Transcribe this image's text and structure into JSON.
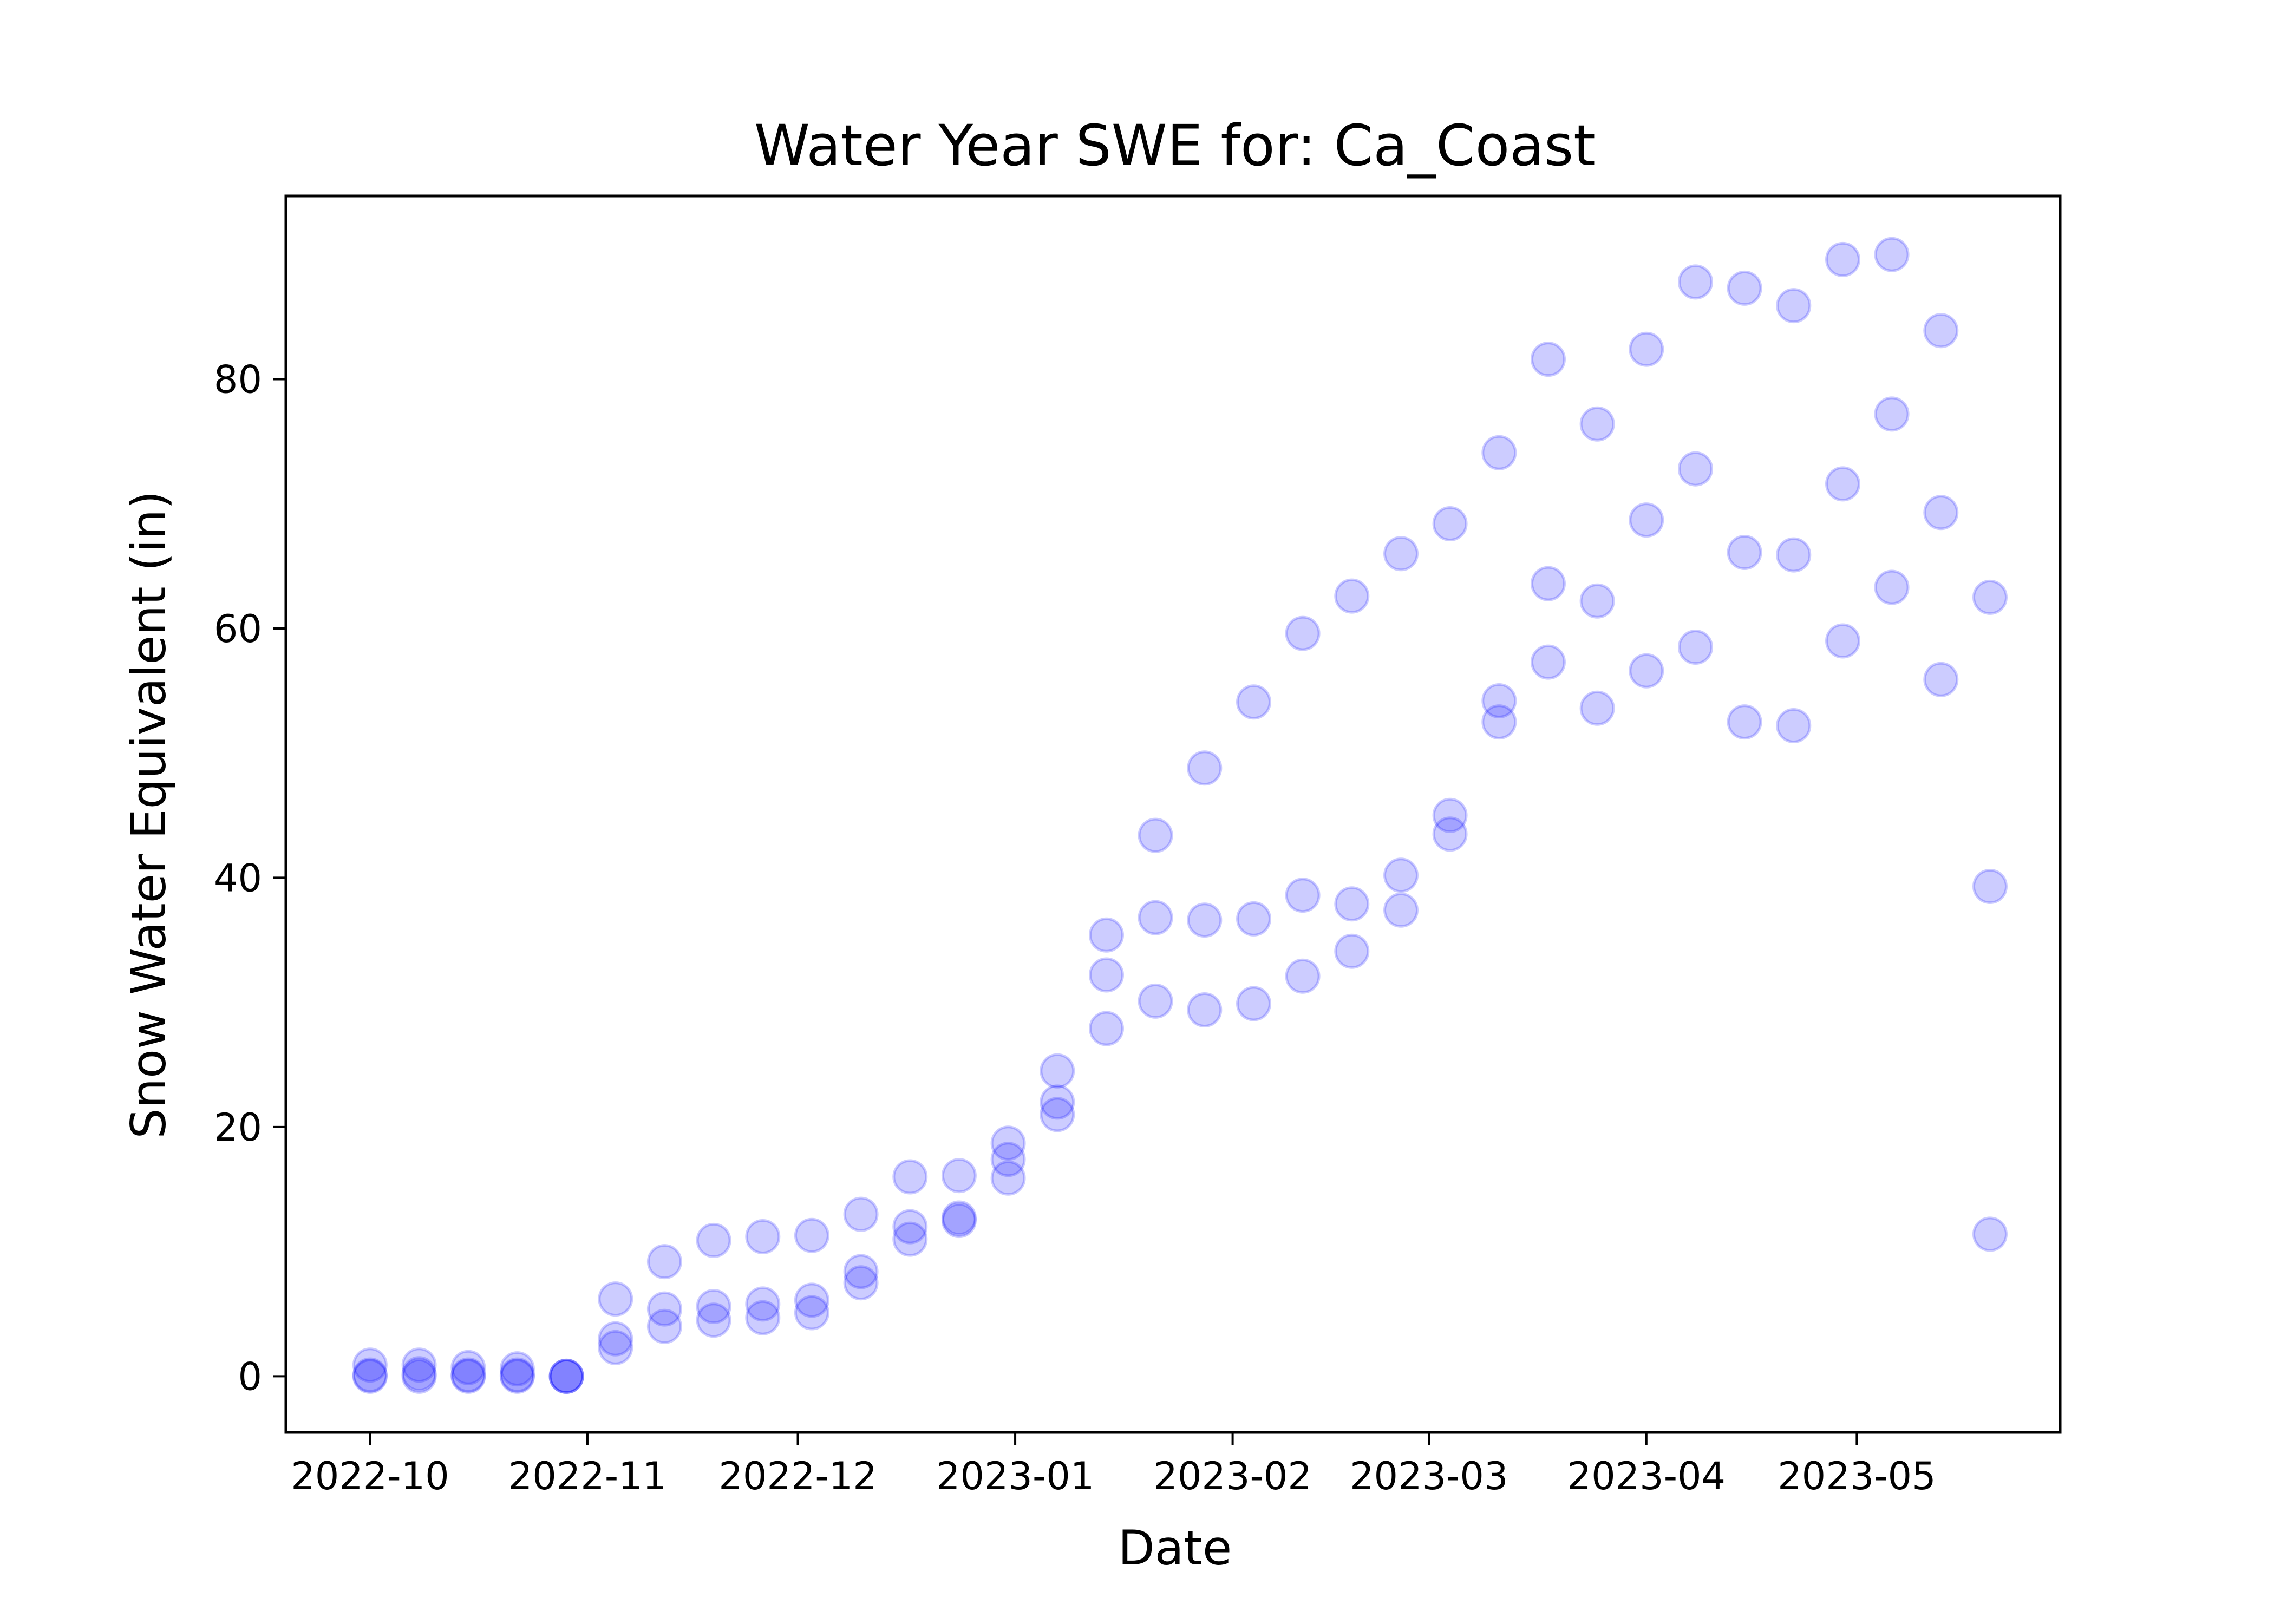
{
  "chart_data": {
    "type": "scatter",
    "title": "Water Year SWE for: Ca_Coast",
    "xlabel": "Date",
    "ylabel": "Snow Water Equivalent (in)",
    "x_axis_type": "date",
    "xlim": [
      "2022-09-19",
      "2023-05-30"
    ],
    "ylim": [
      -4.5,
      94.7
    ],
    "x_ticks": [
      "2022-10",
      "2022-11",
      "2022-12",
      "2023-01",
      "2023-02",
      "2023-03",
      "2023-04",
      "2023-05"
    ],
    "x_tick_dates": [
      "2022-10-01",
      "2022-11-01",
      "2022-12-01",
      "2023-01-01",
      "2023-02-01",
      "2023-03-01",
      "2023-04-01",
      "2023-05-01"
    ],
    "y_ticks": [
      0,
      20,
      40,
      60,
      80
    ],
    "grid": false,
    "legend": "none",
    "marker_color": "#0000ff",
    "marker_alpha": 0.2,
    "points": [
      {
        "x": "2022-10-01",
        "y": [
          0.0,
          0.1,
          0.9
        ]
      },
      {
        "x": "2022-10-08",
        "y": [
          0.0,
          0.2,
          0.9
        ]
      },
      {
        "x": "2022-10-15",
        "y": [
          0.0,
          0.1,
          0.7
        ]
      },
      {
        "x": "2022-10-22",
        "y": [
          0.0,
          0.1,
          0.6
        ]
      },
      {
        "x": "2022-10-29",
        "y": [
          0.0,
          0.0,
          0.0
        ]
      },
      {
        "x": "2022-11-05",
        "y": [
          2.3,
          3.0,
          6.2
        ]
      },
      {
        "x": "2022-11-12",
        "y": [
          4.0,
          5.4,
          9.2
        ]
      },
      {
        "x": "2022-11-19",
        "y": [
          4.5,
          5.6,
          10.9
        ]
      },
      {
        "x": "2022-11-26",
        "y": [
          4.7,
          5.8,
          11.2
        ]
      },
      {
        "x": "2022-12-03",
        "y": [
          5.1,
          6.1,
          11.3
        ]
      },
      {
        "x": "2022-12-10",
        "y": [
          7.5,
          8.4,
          13.0
        ]
      },
      {
        "x": "2022-12-17",
        "y": [
          11.0,
          12.0,
          16.0
        ]
      },
      {
        "x": "2022-12-24",
        "y": [
          12.5,
          12.7,
          16.1
        ]
      },
      {
        "x": "2022-12-31",
        "y": [
          15.9,
          17.4,
          18.7
        ]
      },
      {
        "x": "2023-01-07",
        "y": [
          21.0,
          22.0,
          24.5
        ]
      },
      {
        "x": "2023-01-14",
        "y": [
          27.9,
          32.2,
          35.4
        ]
      },
      {
        "x": "2023-01-21",
        "y": [
          30.1,
          36.8,
          43.4
        ]
      },
      {
        "x": "2023-01-28",
        "y": [
          29.4,
          36.6,
          48.8
        ]
      },
      {
        "x": "2023-02-04",
        "y": [
          29.9,
          36.7,
          54.1
        ]
      },
      {
        "x": "2023-02-11",
        "y": [
          32.1,
          38.6,
          59.6
        ]
      },
      {
        "x": "2023-02-18",
        "y": [
          34.1,
          37.9,
          62.6
        ]
      },
      {
        "x": "2023-02-25",
        "y": [
          37.4,
          40.2,
          66.0
        ]
      },
      {
        "x": "2023-03-04",
        "y": [
          43.5,
          45.0,
          68.4
        ]
      },
      {
        "x": "2023-03-11",
        "y": [
          52.5,
          54.2,
          74.1
        ]
      },
      {
        "x": "2023-03-18",
        "y": [
          57.3,
          63.6,
          81.6
        ]
      },
      {
        "x": "2023-03-25",
        "y": [
          53.6,
          62.2,
          76.4
        ]
      },
      {
        "x": "2023-04-01",
        "y": [
          56.6,
          68.7,
          82.4
        ]
      },
      {
        "x": "2023-04-08",
        "y": [
          58.5,
          72.8,
          87.8
        ]
      },
      {
        "x": "2023-04-15",
        "y": [
          52.5,
          66.1,
          87.3
        ]
      },
      {
        "x": "2023-04-22",
        "y": [
          52.2,
          65.9,
          85.9
        ]
      },
      {
        "x": "2023-04-29",
        "y": [
          59.0,
          71.6,
          89.6
        ]
      },
      {
        "x": "2023-05-06",
        "y": [
          63.3,
          77.2,
          90.0
        ]
      },
      {
        "x": "2023-05-13",
        "y": [
          55.9,
          69.3,
          83.9
        ]
      },
      {
        "x": "2023-05-20",
        "y": [
          11.4,
          39.3,
          62.5
        ]
      }
    ]
  }
}
